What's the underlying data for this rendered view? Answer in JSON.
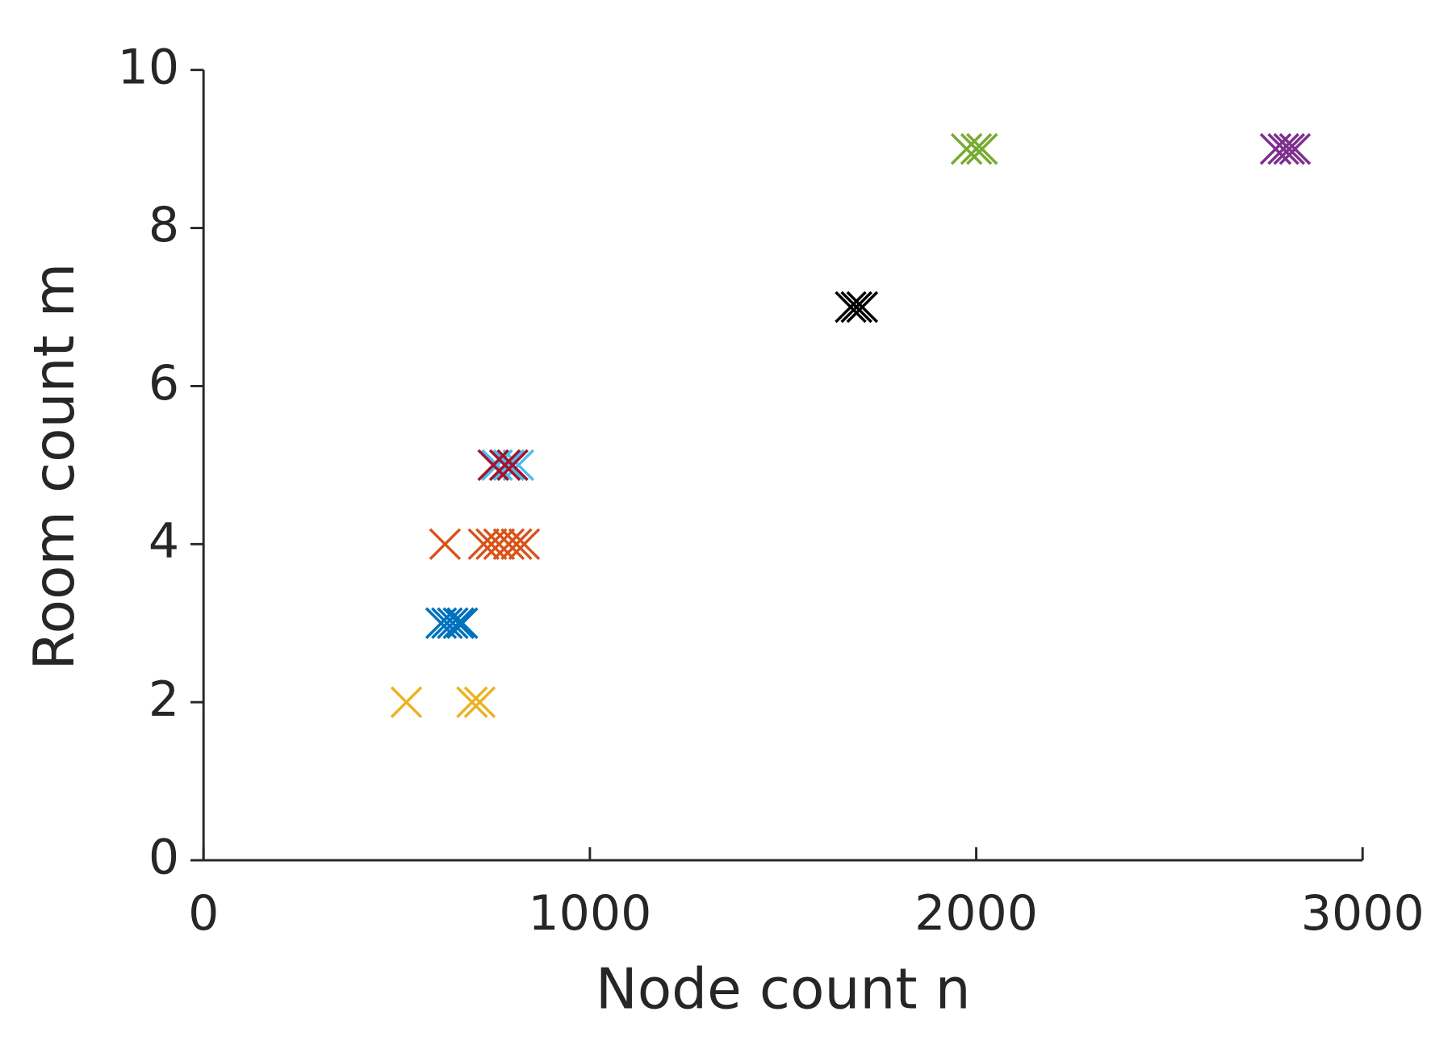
{
  "chart_data": {
    "type": "scatter",
    "xlabel": "Node count n",
    "ylabel": "Room count m",
    "xlim": [
      0,
      3000
    ],
    "xticks": [
      0,
      1000,
      2000,
      3000
    ],
    "ylim": [
      0,
      10
    ],
    "yticks": [
      0,
      2,
      4,
      6,
      8,
      10
    ],
    "marker": "x",
    "series": [
      {
        "color": "#EDB120",
        "x": [
          525,
          695,
          715
        ],
        "values": [
          2,
          2,
          2
        ]
      },
      {
        "color": "#0072BD",
        "x": [
          615,
          630,
          645,
          660,
          670
        ],
        "values": [
          3,
          3,
          3,
          3,
          3
        ]
      },
      {
        "color": "#D95319",
        "x": [
          625,
          725,
          745,
          765,
          790,
          810,
          830
        ],
        "values": [
          4,
          4,
          4,
          4,
          4,
          4,
          4
        ]
      },
      {
        "color": "#4DBEEE",
        "x": [
          760,
          790,
          815
        ],
        "values": [
          5,
          5,
          5
        ]
      },
      {
        "color": "#A2142F",
        "x": [
          750,
          780,
          800
        ],
        "values": [
          5,
          5,
          5
        ]
      },
      {
        "color": "#000000",
        "x": [
          1675,
          1690,
          1705
        ],
        "values": [
          7,
          7,
          7
        ]
      },
      {
        "color": "#77AC30",
        "x": [
          1975,
          2000,
          2015
        ],
        "values": [
          9,
          9,
          9
        ]
      },
      {
        "color": "#7E2F8E",
        "x": [
          2775,
          2795,
          2810,
          2825
        ],
        "values": [
          9,
          9,
          9,
          9
        ]
      }
    ]
  }
}
